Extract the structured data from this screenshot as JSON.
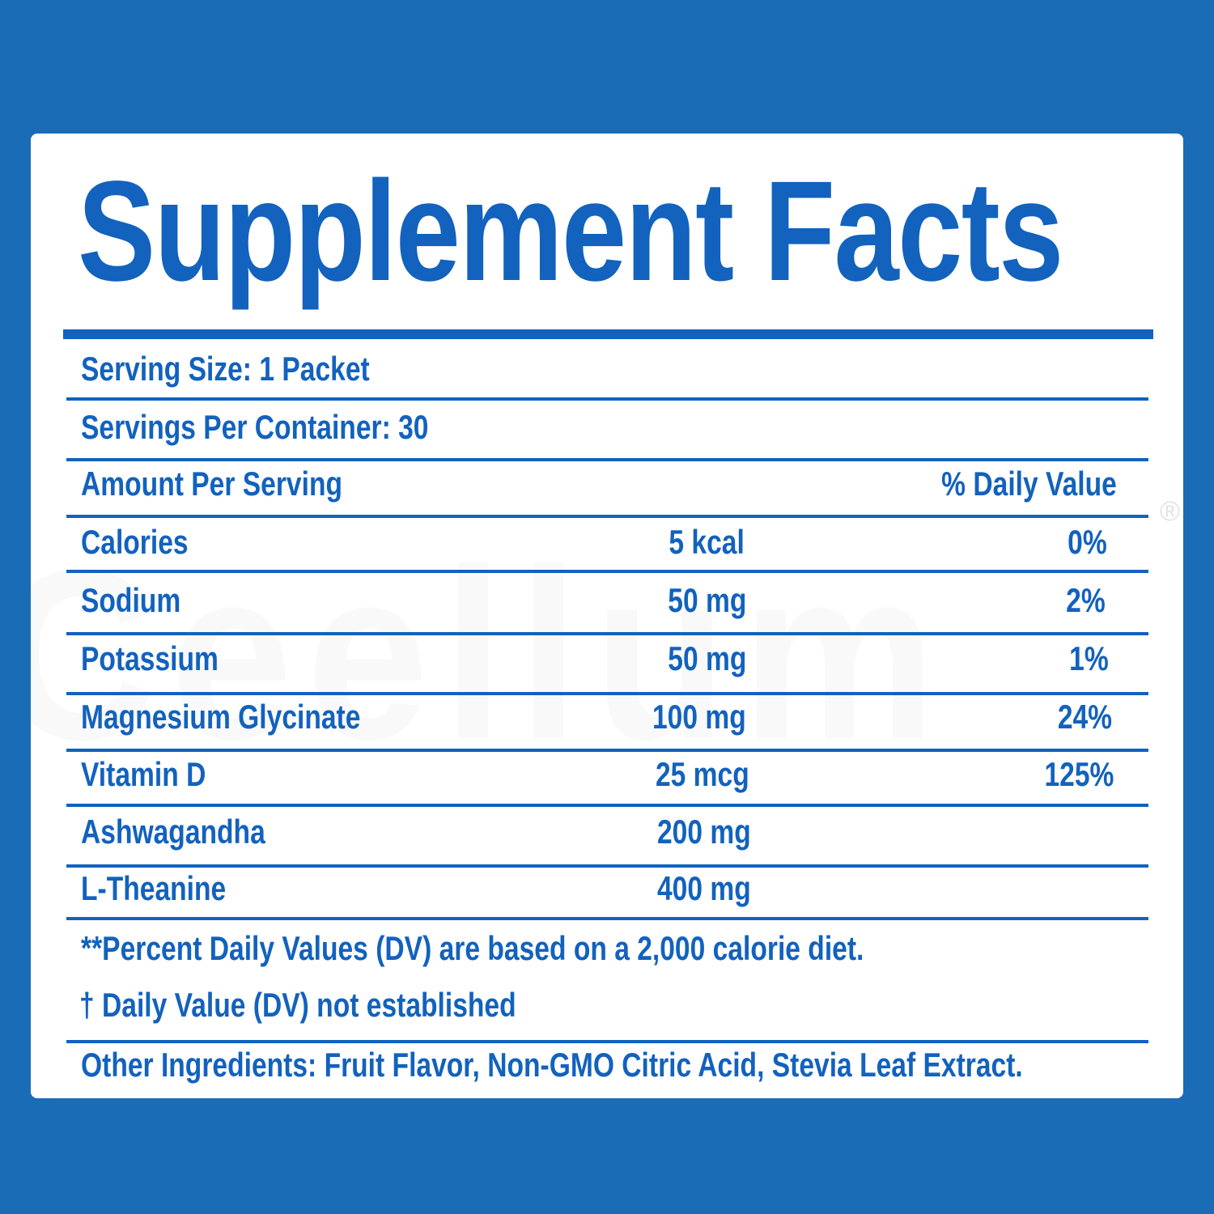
{
  "header": {
    "title": "Supplement Facts",
    "watermark": "Ceellum",
    "registered_mark": "®"
  },
  "serving": {
    "size": "Serving Size: 1 Packet",
    "per_container": "Servings Per Container: 30"
  },
  "table": {
    "header_left": "Amount Per Serving",
    "header_right": "% Daily Value",
    "rows": [
      {
        "name": "Calories",
        "amount": "5 kcal",
        "dv": "0%"
      },
      {
        "name": "Sodium",
        "amount": "50 mg",
        "dv": "2%"
      },
      {
        "name": "Potassium",
        "amount": "50 mg",
        "dv": "1%"
      },
      {
        "name": "Magnesium Glycinate",
        "amount": "100 mg",
        "dv": "24%"
      },
      {
        "name": "Vitamin D",
        "amount": "25 mcg",
        "dv": "125%"
      },
      {
        "name": "Ashwagandha",
        "amount": "200 mg",
        "dv": ""
      },
      {
        "name": "L-Theanine",
        "amount": "400 mg",
        "dv": ""
      }
    ]
  },
  "footnotes": {
    "percent_note": "**Percent Daily Values (DV) are based on a 2,000 calorie diet.",
    "dagger_note": "† Daily Value (DV) not established"
  },
  "other_ingredients": "Other Ingredients: Fruit Flavor, Non-GMO Citric Acid, Stevia Leaf Extract.",
  "colors": {
    "background": "#1b6cb7",
    "panel": "#ffffff",
    "text": "#1262be"
  }
}
